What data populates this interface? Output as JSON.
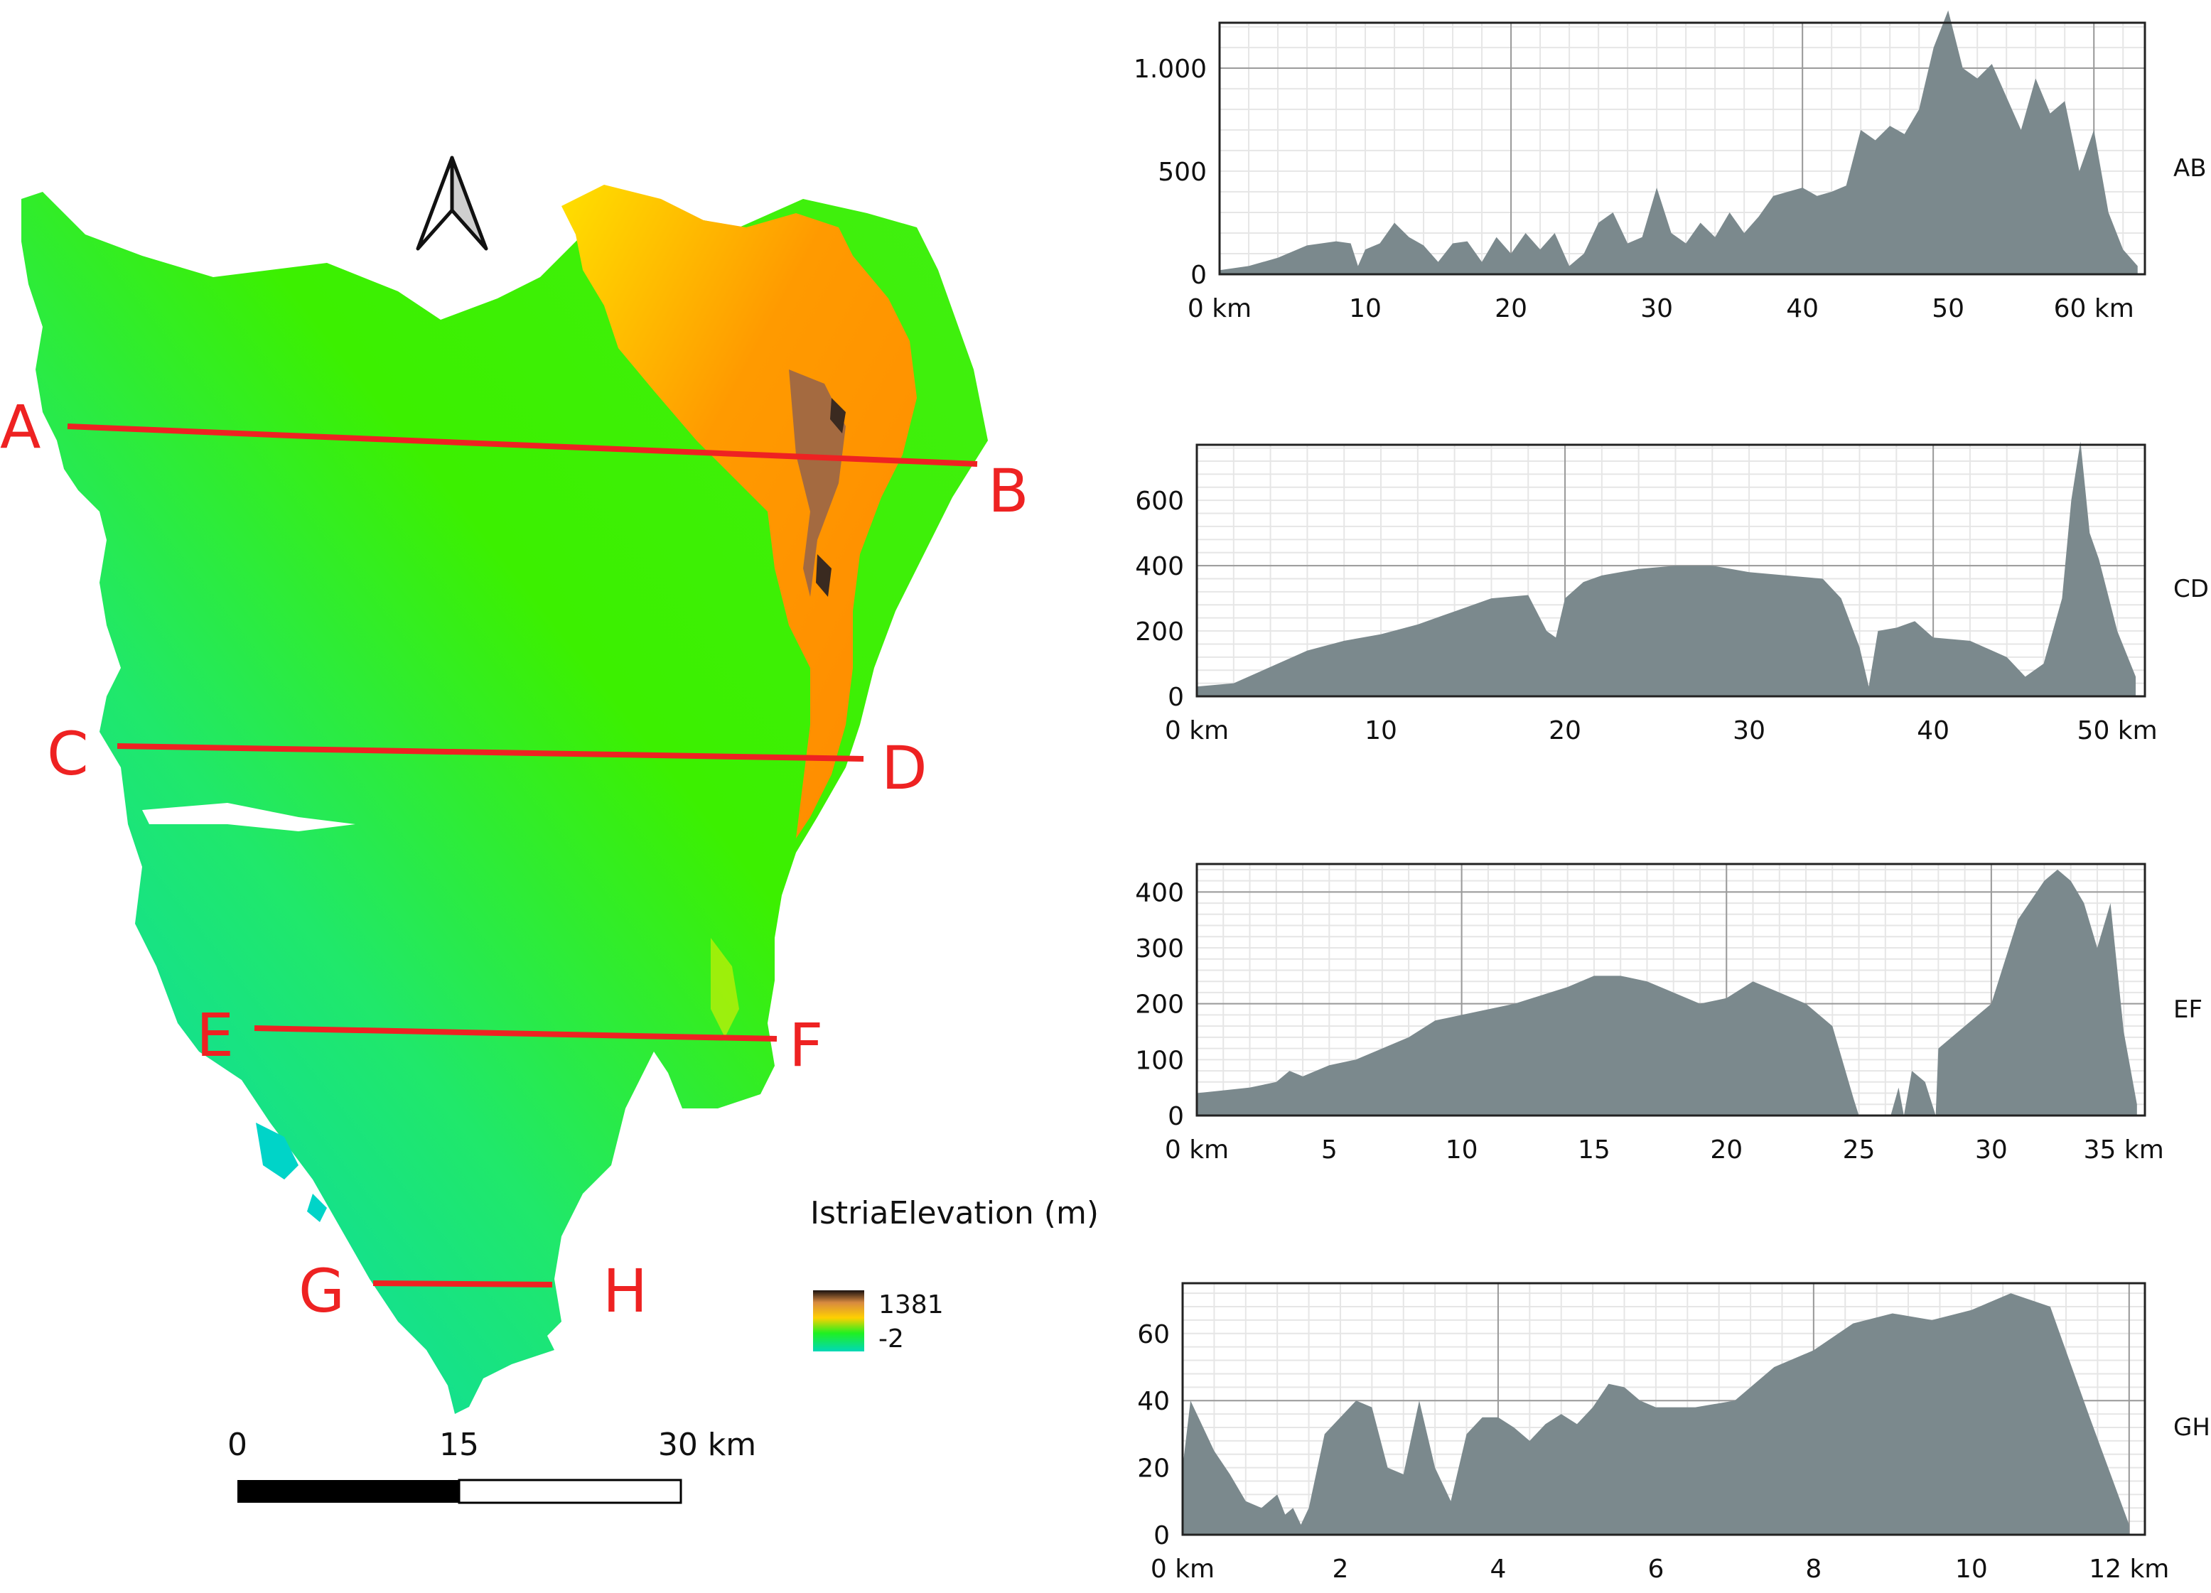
{
  "legend": {
    "title": "IstriaElevation (m)",
    "max_label": "1381",
    "min_label": "-2",
    "ramp_colors": [
      "#00d4c8",
      "#00e84a",
      "#7cff00",
      "#f8f800",
      "#ff9a00",
      "#ff7a10",
      "#3a2a20"
    ]
  },
  "scalebar": {
    "labels": [
      "0",
      "15",
      "30 km"
    ]
  },
  "north_arrow": {
    "icon": "north-arrow-icon"
  },
  "section_lines": [
    {
      "start": "A",
      "end": "B"
    },
    {
      "start": "C",
      "end": "D"
    },
    {
      "start": "E",
      "end": "F"
    },
    {
      "start": "G",
      "end": "H"
    }
  ],
  "chart_data": [
    {
      "type": "area",
      "name": "AB",
      "xlim": [
        0,
        63.5
      ],
      "ylim": [
        0,
        1220
      ],
      "x_ticks": [
        0,
        10,
        20,
        30,
        40,
        50,
        60
      ],
      "x_tick_labels": [
        "0 km",
        "10",
        "20",
        "30",
        "40",
        "50",
        "60 km"
      ],
      "y_ticks": [
        0,
        500,
        1000
      ],
      "y_tick_labels": [
        "0",
        "500",
        "1.000"
      ],
      "fill_color": "#7b898d",
      "x": [
        0,
        2,
        4,
        6,
        8,
        9,
        9.5,
        10,
        11,
        12,
        13,
        14,
        15,
        16,
        17,
        18,
        19,
        20,
        21,
        22,
        23,
        24,
        25,
        26,
        27,
        28,
        29,
        30,
        31,
        32,
        33,
        34,
        35,
        36,
        37,
        38,
        39,
        40,
        41,
        42,
        43,
        44,
        45,
        46,
        47,
        48,
        49,
        50,
        51,
        52,
        53,
        54,
        55,
        56,
        57,
        58,
        59,
        60,
        61,
        62,
        63
      ],
      "y": [
        20,
        40,
        80,
        140,
        160,
        150,
        40,
        120,
        150,
        250,
        180,
        140,
        60,
        150,
        160,
        60,
        180,
        100,
        200,
        120,
        200,
        40,
        100,
        250,
        300,
        150,
        180,
        420,
        200,
        150,
        250,
        180,
        300,
        200,
        280,
        380,
        400,
        420,
        380,
        400,
        430,
        700,
        650,
        720,
        680,
        800,
        1100,
        1280,
        1000,
        950,
        1020,
        860,
        700,
        950,
        780,
        840,
        500,
        700,
        300,
        120,
        40
      ]
    },
    {
      "type": "area",
      "name": "CD",
      "xlim": [
        0,
        51.5
      ],
      "ylim": [
        0,
        770
      ],
      "x_ticks": [
        0,
        10,
        20,
        30,
        40,
        50
      ],
      "x_tick_labels": [
        "0 km",
        "10",
        "20",
        "30",
        "40",
        "50 km"
      ],
      "y_ticks": [
        0,
        200,
        400,
        600
      ],
      "y_tick_labels": [
        "0",
        "200",
        "400",
        "600"
      ],
      "fill_color": "#7b898d",
      "x": [
        0,
        2,
        4,
        6,
        8,
        10,
        12,
        14,
        16,
        18,
        19,
        19.5,
        20,
        21,
        22,
        24,
        26,
        28,
        30,
        32,
        34,
        35,
        36,
        36.5,
        37,
        38,
        39,
        40,
        42,
        44,
        45,
        46,
        47,
        47.5,
        48,
        48.5,
        49,
        50,
        51
      ],
      "y": [
        30,
        40,
        90,
        140,
        170,
        190,
        220,
        260,
        300,
        310,
        200,
        180,
        300,
        350,
        370,
        390,
        400,
        400,
        380,
        370,
        360,
        300,
        150,
        30,
        200,
        210,
        230,
        180,
        170,
        120,
        60,
        100,
        300,
        600,
        780,
        500,
        420,
        200,
        60
      ]
    },
    {
      "type": "area",
      "name": "EF",
      "xlim": [
        0,
        35.8
      ],
      "ylim": [
        0,
        450
      ],
      "x_ticks": [
        0,
        5,
        10,
        15,
        20,
        25,
        30,
        35
      ],
      "x_tick_labels": [
        "0 km",
        "5",
        "10",
        "15",
        "20",
        "25",
        "30",
        "35 km"
      ],
      "y_ticks": [
        0,
        100,
        200,
        300,
        400
      ],
      "y_tick_labels": [
        "0",
        "100",
        "200",
        "300",
        "400"
      ],
      "fill_color": "#7b898d",
      "x": [
        0,
        1,
        2,
        3,
        3.5,
        4,
        5,
        6,
        7,
        8,
        9,
        10,
        12,
        14,
        15,
        16,
        17,
        18,
        19,
        20,
        21,
        22,
        23,
        24,
        24.8,
        25,
        26.2,
        26.5,
        26.7,
        27,
        27.5,
        27.9,
        28,
        29,
        30,
        31,
        32,
        32.5,
        33,
        33.5,
        34,
        34.5,
        35,
        35.5
      ],
      "y": [
        40,
        45,
        50,
        60,
        80,
        70,
        90,
        100,
        120,
        140,
        170,
        180,
        200,
        230,
        250,
        250,
        240,
        220,
        200,
        210,
        240,
        220,
        200,
        160,
        30,
        0,
        0,
        50,
        0,
        80,
        60,
        0,
        120,
        160,
        200,
        350,
        420,
        440,
        420,
        380,
        300,
        380,
        150,
        20
      ]
    },
    {
      "type": "area",
      "name": "GH",
      "xlim": [
        0,
        12.2
      ],
      "ylim": [
        0,
        75
      ],
      "x_ticks": [
        0,
        2,
        4,
        6,
        8,
        10,
        12
      ],
      "x_tick_labels": [
        "0 km",
        "2",
        "4",
        "6",
        "8",
        "10",
        "12 km"
      ],
      "y_ticks": [
        0,
        20,
        40,
        60
      ],
      "y_tick_labels": [
        "0",
        "20",
        "40",
        "60"
      ],
      "fill_color": "#7b898d",
      "x": [
        0,
        0.1,
        0.2,
        0.4,
        0.6,
        0.8,
        1.0,
        1.2,
        1.3,
        1.4,
        1.5,
        1.6,
        1.8,
        2.0,
        2.2,
        2.4,
        2.6,
        2.8,
        3.0,
        3.2,
        3.4,
        3.6,
        3.8,
        4.0,
        4.2,
        4.4,
        4.6,
        4.8,
        5.0,
        5.2,
        5.4,
        5.6,
        5.8,
        6.0,
        6.5,
        7.0,
        7.5,
        8.0,
        8.5,
        9.0,
        9.5,
        10.0,
        10.5,
        11.0,
        11.5,
        12.0
      ],
      "y": [
        20,
        40,
        35,
        25,
        18,
        10,
        8,
        12,
        6,
        8,
        3,
        8,
        30,
        35,
        40,
        38,
        20,
        18,
        40,
        20,
        10,
        30,
        35,
        35,
        32,
        28,
        33,
        36,
        33,
        38,
        45,
        44,
        40,
        38,
        38,
        40,
        50,
        55,
        63,
        66,
        64,
        67,
        72,
        68,
        35,
        3
      ]
    }
  ]
}
